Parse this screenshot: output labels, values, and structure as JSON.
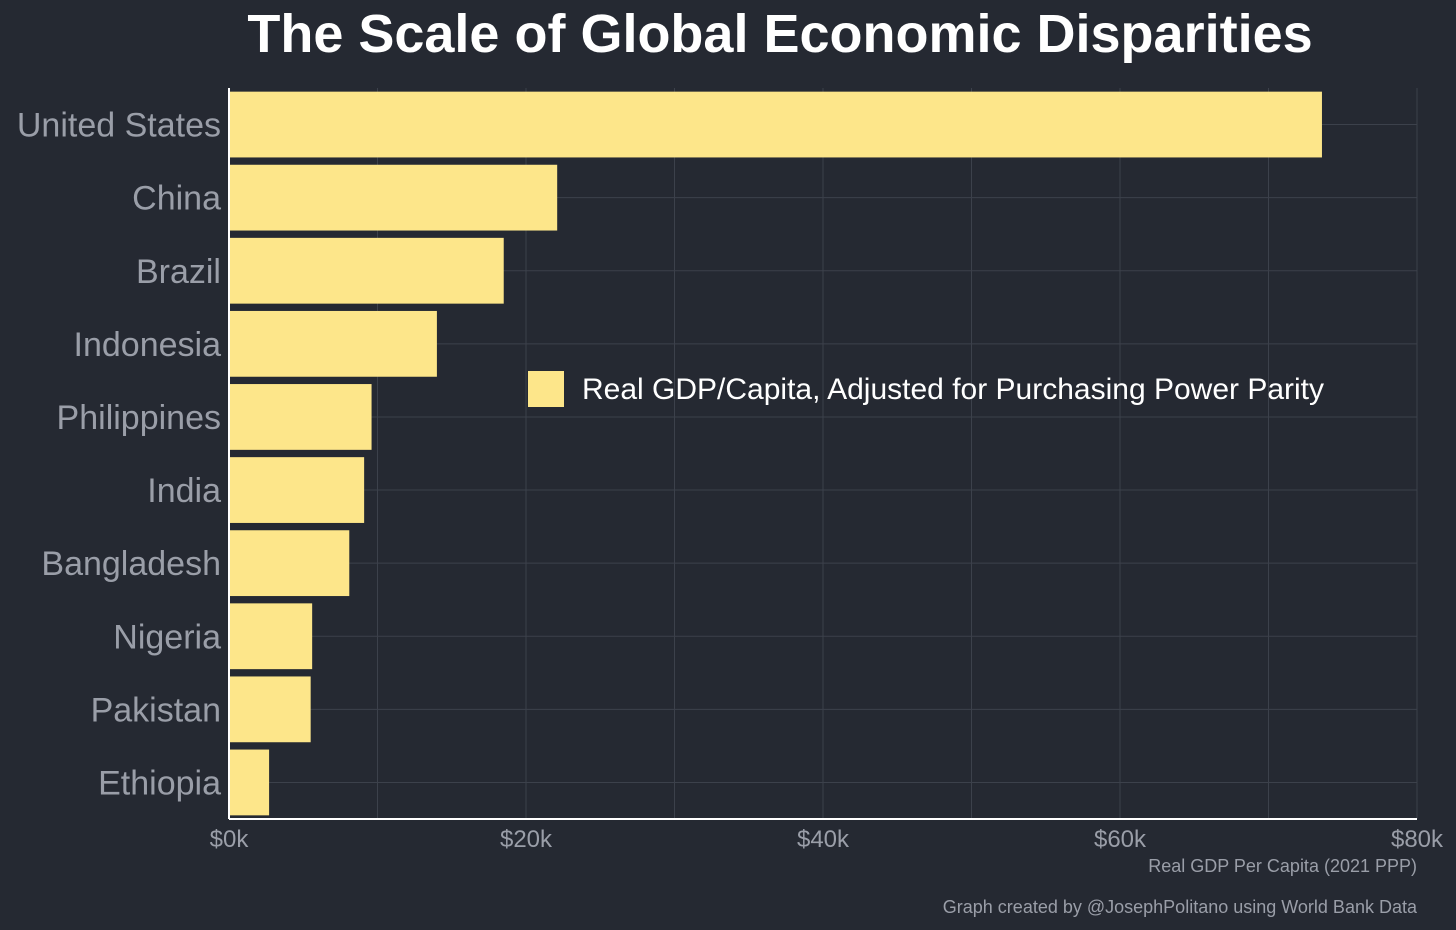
{
  "chart_data": {
    "type": "bar",
    "orientation": "horizontal",
    "title": "The Scale of Global Economic Disparities",
    "categories": [
      "United States",
      "China",
      "Brazil",
      "Indonesia",
      "Philippines",
      "India",
      "Bangladesh",
      "Nigeria",
      "Pakistan",
      "Ethiopia"
    ],
    "series": [
      {
        "name": "Real GDP/Capita, Adjusted for Purchasing Power Parity",
        "values": [
          73600,
          22100,
          18500,
          14000,
          9600,
          9100,
          8100,
          5600,
          5500,
          2700
        ]
      }
    ],
    "xlabel": "Real GDP Per Capita (2021 PPP)",
    "xlim": [
      0,
      80000
    ],
    "xticks": [
      0,
      20000,
      40000,
      60000,
      80000
    ],
    "xtick_labels": [
      "$0k",
      "$20k",
      "$40k",
      "$60k",
      "$80k"
    ],
    "grid": true,
    "legend_position": "center-right",
    "colors": {
      "background": "#252932",
      "bar": "#fde68a",
      "grid": "#3c414b",
      "axis": "#ffffff",
      "muted_text": "#9a9ea8"
    }
  },
  "footer": {
    "credit": "Graph created by @JosephPolitano using World Bank Data"
  }
}
